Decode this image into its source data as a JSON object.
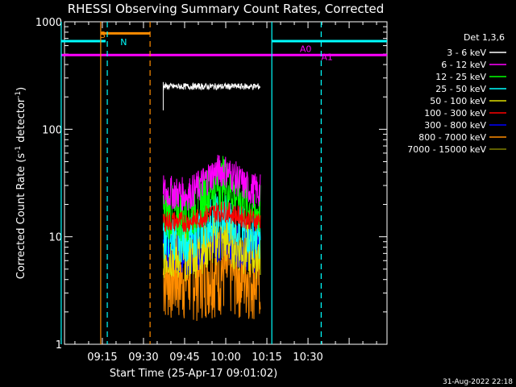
{
  "chart_data": {
    "type": "line",
    "title": "RHESSI Observing Summary Count Rates, Corrected",
    "xlabel": "Start Time (25-Apr-17 09:01:02)",
    "ylabel_main": "Corrected Count Rate (s",
    "ylabel_sup1": "-1",
    "ylabel_mid": " detector",
    "ylabel_sup2": "-1",
    "ylabel_end": ")",
    "ylabel": "Corrected Count Rate (s-1 detector-1)",
    "yscale": "log",
    "ylim": [
      1,
      1000
    ],
    "xlim_minutes": [
      9.02,
      10.98
    ],
    "yticks": [
      {
        "value": 1,
        "label": "1"
      },
      {
        "value": 10,
        "label": "10"
      },
      {
        "value": 100,
        "label": "100"
      },
      {
        "value": 1000,
        "label": "1000"
      }
    ],
    "xticks": [
      {
        "value": 9.25,
        "label": "09:15"
      },
      {
        "value": 9.5,
        "label": "09:30"
      },
      {
        "value": 9.75,
        "label": "09:45"
      },
      {
        "value": 10.0,
        "label": "10:00"
      },
      {
        "value": 10.25,
        "label": "10:15"
      },
      {
        "value": 10.5,
        "label": "10:30"
      }
    ],
    "legend_title": "Det 1,3,6",
    "legend_position": "right",
    "data_start": 9.62,
    "data_end": 10.21,
    "series": [
      {
        "name": "3 - 6 keV",
        "color": "#ffffff",
        "base": 250,
        "bump": 0.0,
        "noise": 0.03
      },
      {
        "name": "6 - 12 keV",
        "color": "#ff00ff",
        "base": 26,
        "bump": 0.45,
        "noise": 0.16
      },
      {
        "name": "12 - 25 keV",
        "color": "#00ff00",
        "base": 17,
        "bump": 0.6,
        "noise": 0.26
      },
      {
        "name": "25 - 50 keV",
        "color": "#00ffff",
        "base": 10,
        "bump": 0.45,
        "noise": 0.22
      },
      {
        "name": "50 - 100 keV",
        "color": "#e0e000",
        "base": 7,
        "bump": 0.3,
        "noise": 0.25
      },
      {
        "name": "100 - 300 keV",
        "color": "#ff0000",
        "base": 14,
        "bump": 0.2,
        "noise": 0.1
      },
      {
        "name": "300 - 800 keV",
        "color": "#0000ff",
        "base": 7.5,
        "bump": 0.25,
        "noise": 0.22
      },
      {
        "name": "800 - 7000 keV",
        "color": "#ff8c00",
        "base": 4.5,
        "bump": 0.1,
        "noise": 0.45
      },
      {
        "name": "7000 - 15000 keV",
        "color": "#808000",
        "base": 1,
        "bump": 0.0,
        "noise": 0.0
      }
    ],
    "annotations": [
      {
        "text": "S",
        "x": 9.0,
        "color": "#ff8c00"
      },
      {
        "text": "N",
        "x": 9.33,
        "color": "#00ffff"
      },
      {
        "text": "A0",
        "x": 10.45,
        "color": "#ff00ff"
      },
      {
        "text": "A1",
        "x": 10.58,
        "color": "#ff00ff"
      }
    ],
    "state_bars": [
      {
        "name": "saa",
        "color": "#ff8c00",
        "x0": 9.24,
        "x1": 9.54,
        "y": 780
      },
      {
        "name": "night1",
        "color": "#00ffff",
        "x0": 9.0,
        "x1": 9.27,
        "y": 660
      },
      {
        "name": "night2",
        "color": "#00ffff",
        "x0": 10.28,
        "x1": 10.98,
        "y": 660
      },
      {
        "name": "atten",
        "color": "#ff00ff",
        "x0": 9.0,
        "x1": 10.98,
        "y": 490
      }
    ],
    "vlines": [
      {
        "name": "cyan-solid-1",
        "x": 9.0,
        "color": "#00ffff",
        "dash": false
      },
      {
        "name": "orange-solid",
        "x": 9.24,
        "color": "#ff8c00",
        "dash": false
      },
      {
        "name": "cyan-dash-1",
        "x": 9.28,
        "color": "#00ffff",
        "dash": true
      },
      {
        "name": "orange-dash",
        "x": 9.54,
        "color": "#ff8c00",
        "dash": true
      },
      {
        "name": "cyan-solid-2",
        "x": 10.28,
        "color": "#00ffff",
        "dash": false
      },
      {
        "name": "cyan-dash-2",
        "x": 10.58,
        "color": "#00ffff",
        "dash": true
      }
    ]
  },
  "footer": {
    "timestamp": "31-Aug-2022 22:18"
  }
}
